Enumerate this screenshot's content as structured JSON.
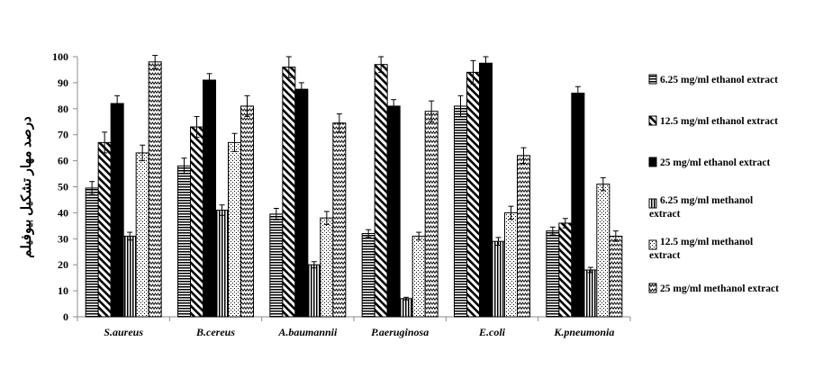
{
  "chart_data": {
    "type": "bar",
    "title": "",
    "xlabel": "",
    "ylabel": "درصد مهار تشکیل بیوفیلم",
    "ylim": [
      0,
      100
    ],
    "yticks": [
      0,
      10,
      20,
      30,
      40,
      50,
      60,
      70,
      80,
      90,
      100
    ],
    "grid": false,
    "error_bars": true,
    "legend_position": "right",
    "categories": [
      "S.aureus",
      "B.cereus",
      "A.baumannii",
      "P.aeruginosa",
      "E.coli",
      "K.pneumonia"
    ],
    "series": [
      {
        "name": "6.25  mg/ml ethanol extract",
        "pattern": "horizontal-lines",
        "values": [
          49.5,
          58,
          39.5,
          32,
          81,
          33
        ],
        "errors": [
          2.5,
          3,
          2.2,
          1.5,
          4,
          1.5
        ]
      },
      {
        "name": "12.5  mg/ml ethanol extract",
        "pattern": "wide-diagonal",
        "values": [
          67,
          73,
          96,
          97,
          94,
          36
        ],
        "errors": [
          4,
          4,
          4,
          3,
          4.5,
          1.8
        ]
      },
      {
        "name": "25  mg/ml ethanol extract",
        "pattern": "solid-black",
        "values": [
          82,
          91,
          87.5,
          81,
          97.5,
          86
        ],
        "errors": [
          3,
          2.5,
          2.5,
          2.5,
          2.5,
          2.5
        ]
      },
      {
        "name": "6.25  mg/ml methanol extract",
        "pattern": "vertical-lines",
        "values": [
          31,
          41,
          20,
          7,
          29,
          18
        ],
        "errors": [
          1.5,
          2,
          1.2,
          0.5,
          1.5,
          1
        ]
      },
      {
        "name": "12.5 mg/ml methanol extract",
        "pattern": "dotted",
        "values": [
          63,
          67,
          38,
          31,
          40,
          51
        ],
        "errors": [
          3,
          3.5,
          2.5,
          1.5,
          2.5,
          2.5
        ]
      },
      {
        "name": "25 mg/ml methanol extract",
        "pattern": "zigzag",
        "values": [
          98,
          81,
          74.5,
          79,
          62,
          31
        ],
        "errors": [
          2.5,
          4,
          3.5,
          4,
          3,
          2
        ]
      }
    ]
  }
}
